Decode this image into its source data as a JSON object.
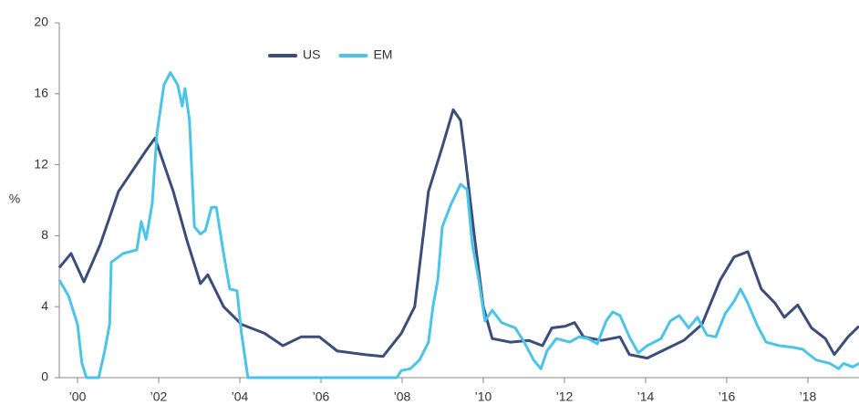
{
  "chart_data": {
    "type": "line",
    "ylabel": "%",
    "xlim": [
      1999.55,
      2019.26
    ],
    "ylim": [
      0,
      20
    ],
    "yticks": [
      0,
      4,
      8,
      12,
      16,
      20
    ],
    "xticks": [
      {
        "value": 2000,
        "label": "’00"
      },
      {
        "value": 2002,
        "label": "’02"
      },
      {
        "value": 2004,
        "label": "’04"
      },
      {
        "value": 2006,
        "label": "’06"
      },
      {
        "value": 2008,
        "label": "’08"
      },
      {
        "value": 2010,
        "label": "’10"
      },
      {
        "value": 2012,
        "label": "’12"
      },
      {
        "value": 2014,
        "label": "’14"
      },
      {
        "value": 2016,
        "label": "’16"
      },
      {
        "value": 2018,
        "label": "’18"
      }
    ],
    "series": [
      {
        "name": "US",
        "color": "#3b4d7a",
        "x": [
          1999.55,
          1999.84,
          2000.16,
          2000.56,
          2001.01,
          2001.69,
          2001.91,
          2002.36,
          2002.7,
          2003.03,
          2003.21,
          2003.6,
          2004.04,
          2004.61,
          2005.06,
          2005.51,
          2005.96,
          2006.4,
          2007.08,
          2007.53,
          2007.98,
          2008.31,
          2008.65,
          2008.99,
          2009.26,
          2009.44,
          2009.55,
          2009.78,
          2010.0,
          2010.22,
          2010.67,
          2011.12,
          2011.46,
          2011.69,
          2012.02,
          2012.25,
          2012.47,
          2012.92,
          2013.37,
          2013.6,
          2014.04,
          2014.49,
          2014.94,
          2015.39,
          2015.84,
          2016.18,
          2016.52,
          2016.85,
          2017.19,
          2017.42,
          2017.75,
          2018.09,
          2018.43,
          2018.65,
          2018.99,
          2019.26
        ],
        "values": [
          6.2,
          7.0,
          5.4,
          7.5,
          10.5,
          12.8,
          13.5,
          10.5,
          7.7,
          5.3,
          5.8,
          4.0,
          3.0,
          2.5,
          1.8,
          2.3,
          2.3,
          1.5,
          1.3,
          1.2,
          2.5,
          4.0,
          10.5,
          13.0,
          15.1,
          14.5,
          12.5,
          8.0,
          4.0,
          2.2,
          2.0,
          2.1,
          1.8,
          2.8,
          2.9,
          3.1,
          2.3,
          2.1,
          2.3,
          1.3,
          1.1,
          1.6,
          2.1,
          3.0,
          5.5,
          6.8,
          7.1,
          5.0,
          4.2,
          3.4,
          4.1,
          2.8,
          2.2,
          1.3,
          2.3,
          2.9
        ]
      },
      {
        "name": "EM",
        "color": "#4cc4ea",
        "x": [
          1999.55,
          1999.78,
          2000.0,
          2000.11,
          2000.22,
          2000.52,
          2000.67,
          2000.79,
          2000.83,
          2001.12,
          2001.46,
          2001.57,
          2001.69,
          2001.84,
          2001.96,
          2002.13,
          2002.29,
          2002.47,
          2002.58,
          2002.65,
          2002.76,
          2002.88,
          2003.03,
          2003.15,
          2003.3,
          2003.42,
          2003.6,
          2003.75,
          2003.93,
          2004.04,
          2004.2,
          2007.87,
          2007.98,
          2008.2,
          2008.43,
          2008.65,
          2008.76,
          2008.88,
          2008.99,
          2009.21,
          2009.44,
          2009.6,
          2009.73,
          2009.89,
          2010.04,
          2010.22,
          2010.45,
          2010.79,
          2011.01,
          2011.24,
          2011.42,
          2011.57,
          2011.8,
          2012.13,
          2012.36,
          2012.58,
          2012.81,
          2013.03,
          2013.19,
          2013.37,
          2013.6,
          2013.82,
          2014.04,
          2014.38,
          2014.61,
          2014.83,
          2015.06,
          2015.28,
          2015.51,
          2015.73,
          2015.96,
          2016.18,
          2016.34,
          2016.52,
          2016.74,
          2016.97,
          2017.3,
          2017.64,
          2017.87,
          2018.2,
          2018.54,
          2018.76,
          2018.88,
          2019.1,
          2019.26
        ],
        "values": [
          5.5,
          4.6,
          3.0,
          0.8,
          0,
          0,
          1.5,
          3.0,
          6.5,
          7.0,
          7.2,
          8.8,
          7.8,
          9.8,
          13.8,
          16.5,
          17.2,
          16.5,
          15.3,
          16.3,
          14.5,
          8.5,
          8.1,
          8.3,
          9.6,
          9.6,
          7.0,
          5.0,
          4.9,
          2.5,
          0,
          0,
          0.4,
          0.5,
          1.0,
          2.0,
          4.0,
          5.5,
          8.5,
          9.8,
          10.9,
          10.6,
          7.5,
          5.5,
          3.2,
          3.8,
          3.1,
          2.8,
          2.0,
          1.0,
          0.5,
          1.5,
          2.2,
          2.0,
          2.3,
          2.2,
          1.9,
          3.2,
          3.7,
          3.5,
          2.3,
          1.4,
          1.8,
          2.2,
          3.2,
          3.5,
          2.8,
          3.4,
          2.4,
          2.3,
          3.6,
          4.3,
          5.0,
          4.2,
          3.0,
          2.0,
          1.8,
          1.7,
          1.6,
          1.0,
          0.8,
          0.5,
          0.8,
          0.6,
          0.8
        ]
      }
    ]
  }
}
